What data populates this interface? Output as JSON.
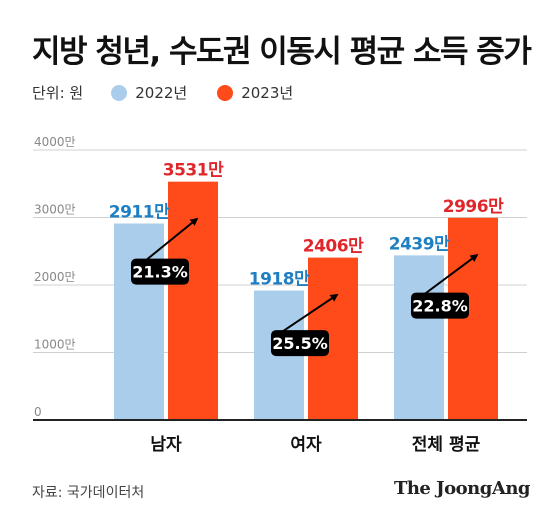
{
  "header": {
    "title": "지방 청년, 수도권 이동시 평균 소득 증가"
  },
  "legend": {
    "unit": "단위: 원",
    "items": [
      {
        "label": "2022년",
        "color": "#a9cdea"
      },
      {
        "label": "2023년",
        "color": "#ff4a1a"
      }
    ]
  },
  "footer": {
    "source": "자료: 국가데이터처",
    "brand": "The JoongAng"
  },
  "chart_data": {
    "type": "bar",
    "categories": [
      "남자",
      "여자",
      "전체 평균"
    ],
    "series": [
      {
        "name": "2022년",
        "values": [
          2911,
          1918,
          2439
        ],
        "labels": [
          "2911만",
          "1918만",
          "2439만"
        ],
        "color": "#a9cdea",
        "label_color": "#1e7fc2"
      },
      {
        "name": "2023년",
        "values": [
          3531,
          2406,
          2996
        ],
        "labels": [
          "3531만",
          "2406만",
          "2996만"
        ],
        "color": "#ff4a1a",
        "label_color": "#e0262b"
      }
    ],
    "growth_labels": [
      "21.3%",
      "25.5%",
      "22.8%"
    ],
    "yticks": [
      {
        "value": 0,
        "label": "0"
      },
      {
        "value": 1000,
        "label": "1000만"
      },
      {
        "value": 2000,
        "label": "2000만"
      },
      {
        "value": 3000,
        "label": "3000만"
      },
      {
        "value": 4000,
        "label": "4000만"
      }
    ],
    "ylim": [
      0,
      4000
    ],
    "grid": true
  }
}
